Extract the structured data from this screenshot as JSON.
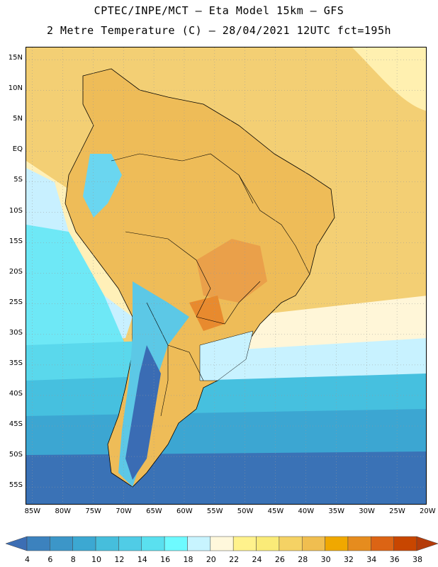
{
  "header": {
    "line1": "CPTEC/INPE/MCT –  Eta Model 15km – GFS",
    "line2": "2 Metre Temperature (C) – 28/04/2021 12UTC fct=195h"
  },
  "map": {
    "region": "South America",
    "lat_labels": [
      "15N",
      "10N",
      "5N",
      "EQ",
      "5S",
      "10S",
      "15S",
      "20S",
      "25S",
      "30S",
      "35S",
      "40S",
      "45S",
      "50S",
      "55S"
    ],
    "lon_labels": [
      "85W",
      "80W",
      "75W",
      "70W",
      "65W",
      "60W",
      "55W",
      "50W",
      "45W",
      "40W",
      "35W",
      "30W",
      "25W",
      "20W"
    ],
    "lon_range": [
      -86,
      -20
    ],
    "lat_range": [
      17,
      -58
    ]
  },
  "colorbar": {
    "values": [
      "4",
      "6",
      "8",
      "10",
      "12",
      "14",
      "16",
      "18",
      "20",
      "22",
      "24",
      "26",
      "28",
      "30",
      "32",
      "34",
      "36",
      "38"
    ],
    "colors": [
      "#3c6eb4",
      "#3c82be",
      "#3c96c8",
      "#3ca8d2",
      "#46bedc",
      "#50cce6",
      "#5ae0ef",
      "#6efaff",
      "#c8f4ff",
      "#fff8dc",
      "#fff28c",
      "#faeb78",
      "#f5d264",
      "#f0be50",
      "#f0a800",
      "#e68c1e",
      "#dc6414",
      "#c84600",
      "#b43c0a"
    ]
  }
}
